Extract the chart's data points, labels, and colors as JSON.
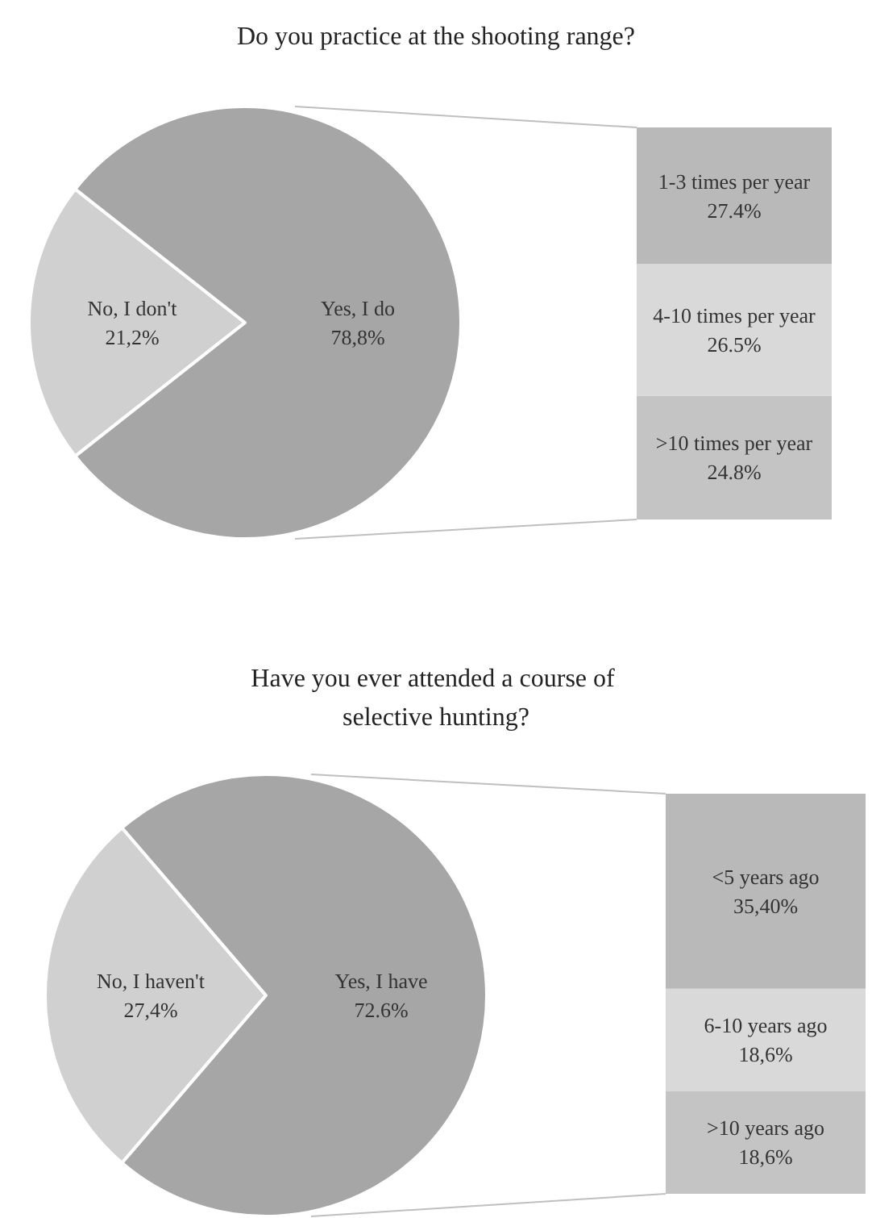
{
  "chart_data": [
    {
      "type": "pie",
      "title": "Do you practice at the shooting range?",
      "categories": [
        "No, I don't",
        "Yes, I do"
      ],
      "values": [
        21.2,
        78.8
      ],
      "colors": [
        "#d0d0d0",
        "#a6a6a6"
      ],
      "value_labels": [
        "21,2%",
        "78,8%"
      ],
      "legend": false
    },
    {
      "type": "bar",
      "stacked": true,
      "categories": [
        null
      ],
      "legend": false,
      "series": [
        {
          "name": ">10 times per year",
          "color": "#c4c4c4",
          "values": [
            24.8
          ],
          "value_labels": [
            "24.8%"
          ]
        },
        {
          "name": "4-10 times per year",
          "color": "#d9d9d9",
          "values": [
            26.5
          ],
          "value_labels": [
            "26.5%"
          ]
        },
        {
          "name": "1-3 times per year",
          "color": "#b9b9b9",
          "values": [
            27.4
          ],
          "value_labels": [
            "27.4%"
          ]
        }
      ]
    },
    {
      "type": "pie",
      "title": "Have you ever attended a course of selective hunting?",
      "categories": [
        "No, I haven't",
        "Yes, I have"
      ],
      "values": [
        27.4,
        72.6
      ],
      "colors": [
        "#d0d0d0",
        "#a6a6a6"
      ],
      "value_labels": [
        "27,4%",
        "72.6%"
      ],
      "legend": false
    },
    {
      "type": "bar",
      "stacked": true,
      "categories": [
        null
      ],
      "legend": false,
      "series": [
        {
          "name": ">10 years ago",
          "color": "#c4c4c4",
          "values": [
            18.6
          ],
          "value_labels": [
            "18,6%"
          ]
        },
        {
          "name": "6-10 years ago",
          "color": "#d9d9d9",
          "values": [
            18.6
          ],
          "value_labels": [
            "18,6%"
          ]
        },
        {
          "name": "<5 years ago",
          "color": "#b9b9b9",
          "values": [
            35.4
          ],
          "value_labels": [
            "35,40%"
          ]
        }
      ]
    }
  ]
}
